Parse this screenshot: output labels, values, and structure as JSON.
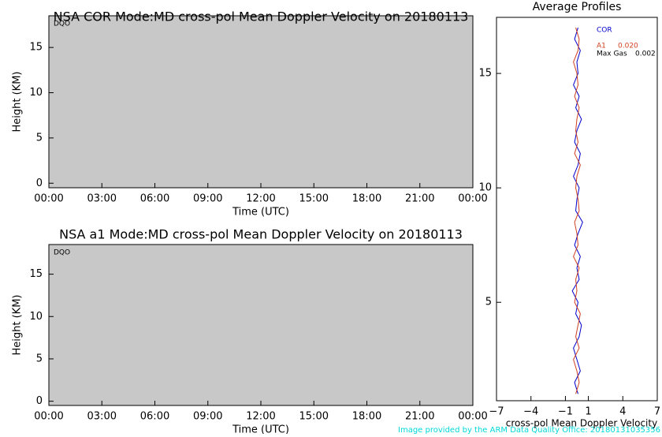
{
  "chart_data": [
    {
      "type": "image",
      "title": "NSA COR  Mode:MD  cross-pol Mean Doppler Velocity on 20180113",
      "annotation": "DQO",
      "xlabel": "Time (UTC)",
      "ylabel": "Height (KM)",
      "background": "#c8c8c8",
      "xlim": [
        0,
        24
      ],
      "xticks": [
        {
          "value": 0,
          "label": "00:00"
        },
        {
          "value": 3,
          "label": "03:00"
        },
        {
          "value": 6,
          "label": "06:00"
        },
        {
          "value": 9,
          "label": "09:00"
        },
        {
          "value": 12,
          "label": "12:00"
        },
        {
          "value": 15,
          "label": "15:00"
        },
        {
          "value": 18,
          "label": "18:00"
        },
        {
          "value": 21,
          "label": "21:00"
        },
        {
          "value": 24,
          "label": "00:00"
        }
      ],
      "ylim": [
        -0.5,
        18.5
      ],
      "yticks": [
        0,
        5,
        10,
        15
      ]
    },
    {
      "type": "image",
      "title": "NSA a1  Mode:MD  cross-pol Mean Doppler Velocity on 20180113",
      "annotation": "DQO",
      "xlabel": "Time (UTC)",
      "ylabel": "Height (KM)",
      "background": "#c8c8c8",
      "xlim": [
        0,
        24
      ],
      "xticks": [
        {
          "value": 0,
          "label": "00:00"
        },
        {
          "value": 3,
          "label": "03:00"
        },
        {
          "value": 6,
          "label": "06:00"
        },
        {
          "value": 9,
          "label": "09:00"
        },
        {
          "value": 12,
          "label": "12:00"
        },
        {
          "value": 15,
          "label": "15:00"
        },
        {
          "value": 18,
          "label": "18:00"
        },
        {
          "value": 21,
          "label": "21:00"
        },
        {
          "value": 24,
          "label": "00:00"
        }
      ],
      "ylim": [
        -0.5,
        18.5
      ],
      "yticks": [
        0,
        5,
        10,
        15
      ]
    },
    {
      "type": "profile",
      "title": "Average Profiles",
      "xlabel": "cross-pol Mean Doppler Velocity",
      "xlim": [
        -7,
        7
      ],
      "xticks": [
        {
          "value": -7,
          "label": "−7"
        },
        {
          "value": -4,
          "label": "−4"
        },
        {
          "value": -1,
          "label": "−1"
        },
        1,
        4,
        7
      ],
      "ylim": [
        0.7,
        17.45
      ],
      "yticks": [
        5,
        10,
        15
      ],
      "y": [
        1,
        1.5,
        2,
        2.5,
        3,
        3.5,
        4,
        4.5,
        5,
        5.5,
        6,
        6.5,
        7,
        7.5,
        8,
        8.5,
        9,
        9.5,
        10,
        10.5,
        11,
        11.5,
        12,
        12.5,
        13,
        13.5,
        14,
        14.5,
        15,
        15.5,
        16,
        16.5,
        17
      ],
      "series": [
        {
          "name": "COR",
          "color": "#0000cc",
          "values": [
            0.1,
            -0.2,
            0.3,
            0.0,
            -0.3,
            0.2,
            0.4,
            -0.1,
            0.1,
            -0.4,
            0.2,
            0.0,
            0.3,
            -0.2,
            0.1,
            0.5,
            -0.1,
            0.0,
            0.2,
            -0.3,
            0.1,
            0.3,
            -0.2,
            0.0,
            0.4,
            -0.1,
            0.2,
            -0.3,
            0.1,
            0.0,
            0.3,
            -0.2,
            0.1
          ]
        },
        {
          "name": "A1",
          "color": "#d04020",
          "stat": {
            "value": 0.02,
            "label": "0.020"
          },
          "values": [
            -0.1,
            0.2,
            0.0,
            -0.3,
            0.2,
            -0.1,
            0.1,
            0.3,
            -0.2,
            0.0,
            -0.1,
            0.2,
            -0.3,
            0.1,
            0.0,
            -0.2,
            0.2,
            0.1,
            -0.1,
            0.0,
            0.3,
            -0.2,
            0.1,
            -0.1,
            0.0,
            0.2,
            -0.2,
            0.1,
            0.0,
            -0.3,
            0.1,
            0.2,
            -0.1
          ]
        }
      ],
      "max_gas_label": "Max Gas",
      "max_gas": {
        "value": 0.002,
        "label": "0.002"
      }
    }
  ],
  "footer": "Image provided by the ARM Data Quality Office: 20180131035356"
}
